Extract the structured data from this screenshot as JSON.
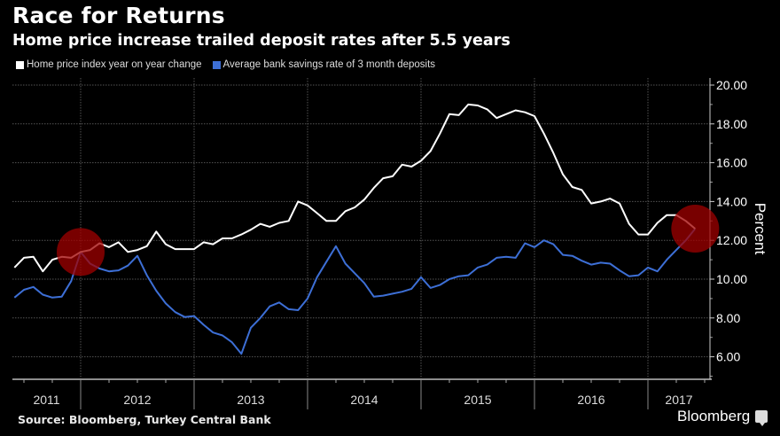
{
  "header": {
    "title": "Race for Returns",
    "subtitle": "Home price increase trailed deposit rates after 5.5 years"
  },
  "footer": {
    "source": "Source: Bloomberg, Turkey Central Bank",
    "brand": "Bloomberg"
  },
  "chart_data": {
    "type": "line",
    "title": "Race for Returns",
    "subtitle": "Home price increase trailed deposit rates after 5.5 years",
    "xlabel": "",
    "ylabel": "Percent",
    "ylim": [
      5,
      20.1
    ],
    "yticks": [
      "20.00",
      "18.00",
      "16.00",
      "14.00",
      "12.00",
      "10.00",
      "8.00",
      "6.00"
    ],
    "ytick_values": [
      20,
      18,
      16,
      14,
      12,
      10,
      8,
      6
    ],
    "xticks": [
      "2011",
      "2012",
      "2013",
      "2014",
      "2015",
      "2016",
      "2017"
    ],
    "x_start": "2011-06",
    "x_end": "2017-06",
    "x_unit": "monthly",
    "grid": true,
    "legend_position": "top-left",
    "series": [
      {
        "name": "Home price index year on year change",
        "color": "#ffffff",
        "values": [
          10.6,
          11.1,
          11.15,
          10.4,
          11.0,
          11.15,
          11.1,
          11.4,
          11.5,
          11.85,
          11.65,
          11.9,
          11.4,
          11.5,
          11.7,
          12.45,
          11.8,
          11.55,
          11.55,
          11.55,
          11.9,
          11.8,
          12.1,
          12.1,
          12.3,
          12.55,
          12.85,
          12.7,
          12.9,
          13.0,
          14.0,
          13.8,
          13.4,
          13.0,
          13.0,
          13.5,
          13.7,
          14.1,
          14.7,
          15.2,
          15.3,
          15.9,
          15.8,
          16.1,
          16.6,
          17.5,
          18.5,
          18.45,
          19.0,
          18.95,
          18.75,
          18.3,
          18.5,
          18.7,
          18.6,
          18.4,
          17.5,
          16.5,
          15.4,
          14.75,
          14.6,
          13.9,
          14.0,
          14.15,
          13.9,
          12.85,
          12.3,
          12.3,
          12.9,
          13.3,
          13.3,
          13.0,
          12.6
        ]
      },
      {
        "name": "Average bank savings rate of 3 month deposits",
        "color": "#3d6fd6",
        "values": [
          9.05,
          9.45,
          9.6,
          9.2,
          9.05,
          9.1,
          9.9,
          11.4,
          10.8,
          10.55,
          10.4,
          10.45,
          10.7,
          11.2,
          10.2,
          9.4,
          8.75,
          8.3,
          8.05,
          8.1,
          7.65,
          7.25,
          7.1,
          6.75,
          6.15,
          7.5,
          8.0,
          8.6,
          8.8,
          8.45,
          8.4,
          9.0,
          10.1,
          10.9,
          11.7,
          10.8,
          10.3,
          9.8,
          9.1,
          9.15,
          9.25,
          9.35,
          9.5,
          10.1,
          9.55,
          9.7,
          10.0,
          10.15,
          10.2,
          10.6,
          10.75,
          11.1,
          11.15,
          11.1,
          11.85,
          11.65,
          12.0,
          11.8,
          11.25,
          11.2,
          10.95,
          10.75,
          10.85,
          10.8,
          10.45,
          10.15,
          10.2,
          10.6,
          10.4,
          11.0,
          11.5,
          12.0,
          12.6
        ]
      }
    ],
    "annotations": [
      {
        "type": "circle",
        "color": "#a00000",
        "at_date": "2012-01",
        "at_value": 11.4
      },
      {
        "type": "circle",
        "color": "#a00000",
        "at_date": "2017-06",
        "at_value": 12.6
      }
    ]
  }
}
